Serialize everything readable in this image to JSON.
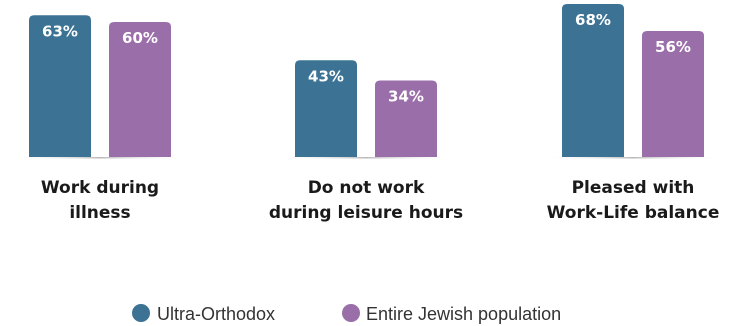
{
  "chart_data": {
    "type": "bar",
    "categories": [
      [
        "Work during",
        "illness"
      ],
      [
        "Do not work",
        "during leisure hours"
      ],
      [
        "Pleased with",
        "Work-Life balance"
      ]
    ],
    "series": [
      {
        "name": "Ultra-Orthodox",
        "color": "#3c7294",
        "values": [
          63,
          43,
          68
        ]
      },
      {
        "name": "Entire Jewish population",
        "color": "#9a6ea9",
        "values": [
          60,
          34,
          56
        ]
      }
    ],
    "value_labels": [
      [
        "63%",
        "43%",
        "68%"
      ],
      [
        "60%",
        "34%",
        "56%"
      ]
    ],
    "ylim": [
      0,
      68
    ],
    "legend_position": "bottom"
  }
}
